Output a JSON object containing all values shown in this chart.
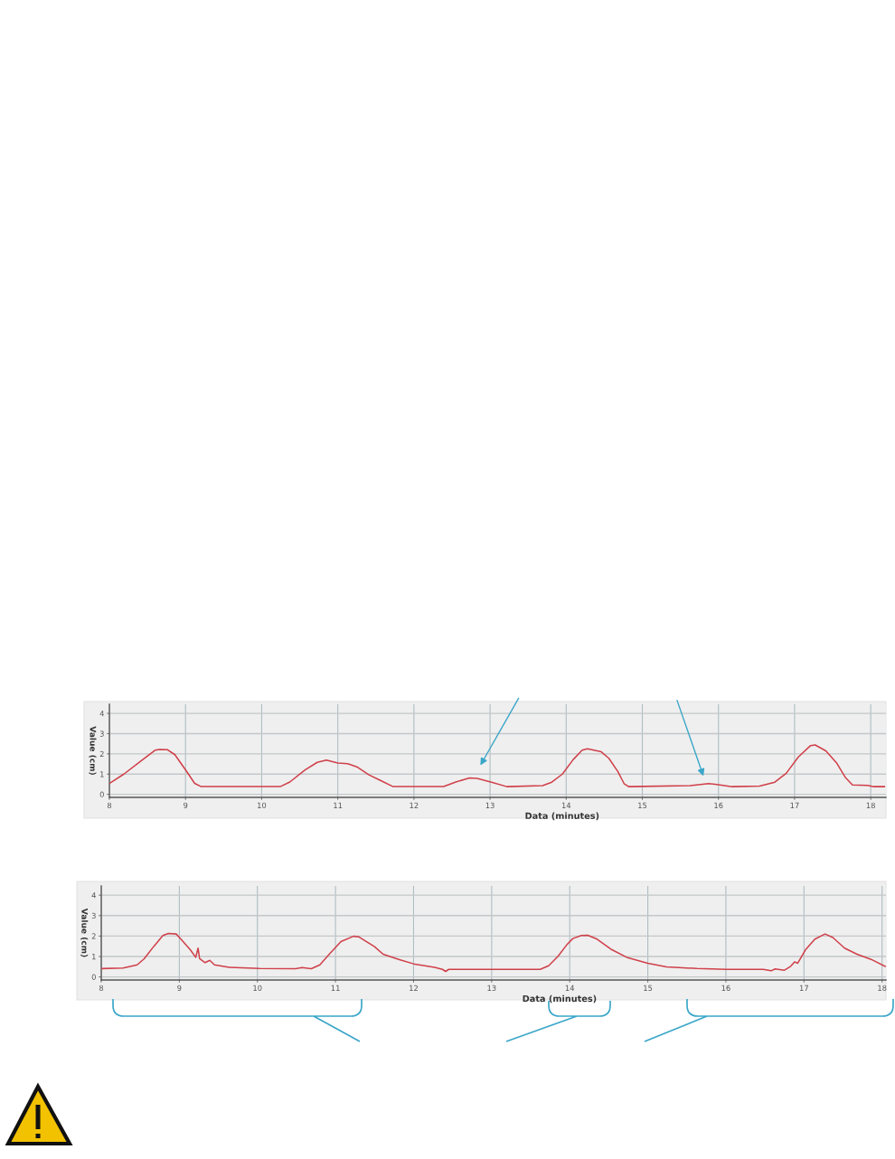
{
  "chart_data": [
    {
      "type": "line",
      "xlabel": "Data (minutes)",
      "ylabel": "Value (cm)",
      "x": [
        8.0,
        8.19,
        8.42,
        8.6,
        8.66,
        8.76,
        8.86,
        9.0,
        9.12,
        9.2,
        10.25,
        10.37,
        10.57,
        10.73,
        10.85,
        11.0,
        11.13,
        11.25,
        11.41,
        11.56,
        11.72,
        12.39,
        12.55,
        12.73,
        12.83,
        13.02,
        13.22,
        13.69,
        13.81,
        13.95,
        14.09,
        14.21,
        14.28,
        14.46,
        14.56,
        14.68,
        14.76,
        14.82,
        15.63,
        15.87,
        15.98,
        16.18,
        16.54,
        16.74,
        16.89,
        17.05,
        17.21,
        17.27,
        17.41,
        17.55,
        17.67,
        17.76,
        17.96,
        18.04,
        18.18
      ],
      "series": [
        {
          "color": "#d0404a",
          "values": [
            0.54,
            1.0,
            1.66,
            2.18,
            2.22,
            2.21,
            1.96,
            1.21,
            0.54,
            0.39,
            0.39,
            0.61,
            1.21,
            1.58,
            1.69,
            1.55,
            1.51,
            1.36,
            0.96,
            0.69,
            0.39,
            0.39,
            0.61,
            0.81,
            0.79,
            0.6,
            0.38,
            0.43,
            0.6,
            1.0,
            1.71,
            2.18,
            2.25,
            2.1,
            1.78,
            1.12,
            0.53,
            0.38,
            0.43,
            0.53,
            0.49,
            0.38,
            0.41,
            0.6,
            1.04,
            1.85,
            2.41,
            2.44,
            2.15,
            1.56,
            0.82,
            0.46,
            0.44,
            0.38,
            0.38
          ]
        }
      ],
      "xlim": [
        8,
        18.2
      ],
      "ylim": [
        -0.15,
        4.45
      ],
      "xticks": [
        8,
        9,
        10,
        11,
        12,
        13,
        14,
        15,
        16,
        17,
        18
      ],
      "yticks": [
        0,
        1,
        2,
        3,
        4
      ],
      "grid": true
    },
    {
      "type": "line",
      "xlabel": "Data (minutes)",
      "ylabel": "Value (cm)",
      "x": [
        8.01,
        8.28,
        8.46,
        8.55,
        8.67,
        8.79,
        8.86,
        8.96,
        9.02,
        9.14,
        9.21,
        9.24,
        9.26,
        9.33,
        9.39,
        9.45,
        9.64,
        10.03,
        10.49,
        10.57,
        10.69,
        10.8,
        10.92,
        11.07,
        11.23,
        11.3,
        11.5,
        11.61,
        11.81,
        12.0,
        12.27,
        12.37,
        12.41,
        12.45,
        12.66,
        13.0,
        13.62,
        13.73,
        13.85,
        13.96,
        14.04,
        14.15,
        14.23,
        14.35,
        14.54,
        14.73,
        15.0,
        15.24,
        15.63,
        16.01,
        16.48,
        16.58,
        16.63,
        16.75,
        16.83,
        16.88,
        16.92,
        17.02,
        17.14,
        17.27,
        17.37,
        17.52,
        17.68,
        17.86,
        18.04
      ],
      "series": [
        {
          "color": "#d0404a",
          "values": [
            0.41,
            0.44,
            0.59,
            0.89,
            1.48,
            2.03,
            2.13,
            2.1,
            1.85,
            1.33,
            0.96,
            1.41,
            0.89,
            0.7,
            0.81,
            0.59,
            0.47,
            0.41,
            0.4,
            0.46,
            0.4,
            0.59,
            1.11,
            1.73,
            1.99,
            1.96,
            1.48,
            1.11,
            0.86,
            0.64,
            0.47,
            0.37,
            0.27,
            0.37,
            0.37,
            0.37,
            0.37,
            0.55,
            1.01,
            1.56,
            1.88,
            2.03,
            2.04,
            1.85,
            1.33,
            0.96,
            0.67,
            0.49,
            0.41,
            0.37,
            0.37,
            0.3,
            0.39,
            0.33,
            0.52,
            0.74,
            0.67,
            1.33,
            1.85,
            2.1,
            1.93,
            1.41,
            1.11,
            0.86,
            0.52
          ]
        }
      ],
      "xlim": [
        8,
        18.05
      ],
      "ylim": [
        -0.15,
        4.45
      ],
      "xticks": [
        8,
        9,
        10,
        11,
        12,
        13,
        14,
        15,
        16,
        17,
        18
      ],
      "yticks": [
        0,
        1,
        2,
        3,
        4
      ],
      "grid": true
    }
  ]
}
